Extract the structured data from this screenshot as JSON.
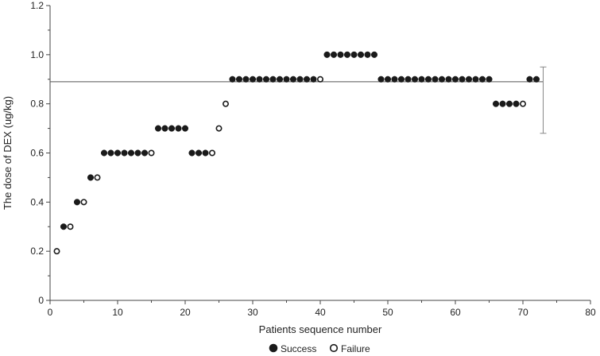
{
  "chart_data": {
    "type": "scatter",
    "title": "",
    "xlabel": "Patients sequence number",
    "ylabel": "The dose of DEX (ug/kg)",
    "xlim": [
      0,
      80
    ],
    "ylim": [
      0,
      1.2
    ],
    "x_ticks": [
      0,
      10,
      20,
      30,
      40,
      50,
      60,
      70,
      80
    ],
    "y_ticks": [
      "0",
      "0.2",
      "0.4",
      "0.6",
      "0.8",
      "1.0",
      "1.2"
    ],
    "grid": false,
    "legend_position": "bottom-center",
    "reference_line": {
      "y": 0.89,
      "x_end": 73
    },
    "error_bar": {
      "x": 73,
      "center": 0.89,
      "low": 0.68,
      "high": 0.95
    },
    "series": [
      {
        "name": "Success",
        "marker": "filled-circle",
        "x": [
          2,
          4,
          6,
          8,
          9,
          10,
          11,
          12,
          13,
          14,
          16,
          17,
          18,
          19,
          20,
          21,
          22,
          23,
          27,
          28,
          29,
          30,
          31,
          32,
          33,
          34,
          35,
          36,
          37,
          38,
          39,
          41,
          42,
          43,
          44,
          45,
          46,
          47,
          48,
          49,
          50,
          51,
          52,
          53,
          54,
          55,
          56,
          57,
          58,
          59,
          60,
          61,
          62,
          63,
          64,
          65,
          66,
          67,
          68,
          69,
          71,
          72
        ],
        "y": [
          0.3,
          0.4,
          0.5,
          0.6,
          0.6,
          0.6,
          0.6,
          0.6,
          0.6,
          0.6,
          0.7,
          0.7,
          0.7,
          0.7,
          0.7,
          0.6,
          0.6,
          0.6,
          0.9,
          0.9,
          0.9,
          0.9,
          0.9,
          0.9,
          0.9,
          0.9,
          0.9,
          0.9,
          0.9,
          0.9,
          0.9,
          1.0,
          1.0,
          1.0,
          1.0,
          1.0,
          1.0,
          1.0,
          1.0,
          0.9,
          0.9,
          0.9,
          0.9,
          0.9,
          0.9,
          0.9,
          0.9,
          0.9,
          0.9,
          0.9,
          0.9,
          0.9,
          0.9,
          0.9,
          0.9,
          0.9,
          0.8,
          0.8,
          0.8,
          0.8,
          0.9,
          0.9
        ]
      },
      {
        "name": "Failure",
        "marker": "open-circle",
        "x": [
          1,
          3,
          5,
          7,
          15,
          24,
          25,
          26,
          40,
          70
        ],
        "y": [
          0.2,
          0.3,
          0.4,
          0.5,
          0.6,
          0.6,
          0.7,
          0.8,
          0.9,
          0.8
        ]
      }
    ],
    "colors": {
      "axis": "#444444",
      "marker": "#1a1a1a",
      "reference_line": "#555555",
      "error_bar": "#888888"
    }
  }
}
